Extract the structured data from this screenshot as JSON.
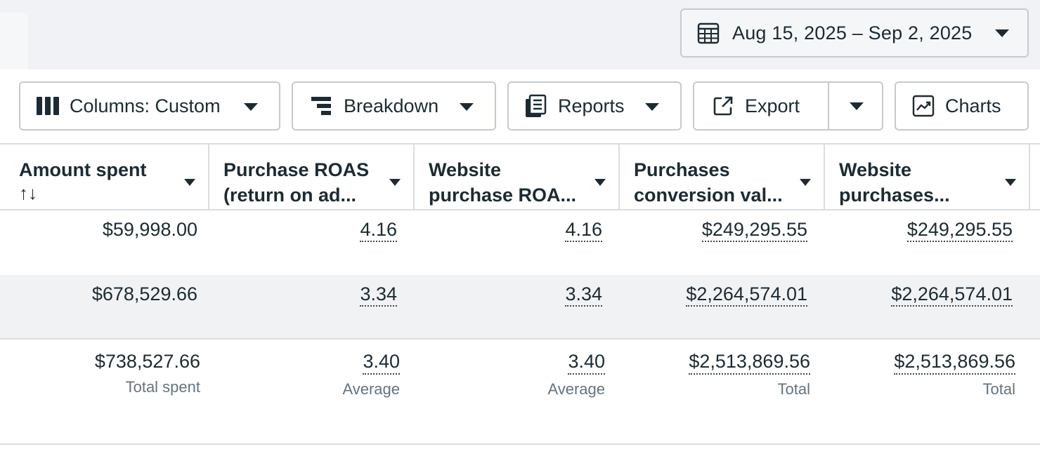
{
  "date_picker": {
    "label": "Aug 15, 2025 – Sep 2, 2025"
  },
  "toolbar": {
    "columns_label": "Columns: Custom",
    "breakdown_label": "Breakdown",
    "reports_label": "Reports",
    "export_label": "Export",
    "charts_label": "Charts"
  },
  "table": {
    "headers": [
      {
        "line1": "Amount spent",
        "line2": "↑↓"
      },
      {
        "line1": "Purchase ROAS",
        "line2": "(return on ad..."
      },
      {
        "line1": "Website",
        "line2": "purchase ROA..."
      },
      {
        "line1": "Purchases",
        "line2": "conversion val..."
      },
      {
        "line1": "Website",
        "line2": "purchases..."
      }
    ],
    "rows": [
      [
        "$59,998.00",
        "4.16",
        "4.16",
        "$249,295.55",
        "$249,295.55"
      ],
      [
        "$678,529.66",
        "3.34",
        "3.34",
        "$2,264,574.01",
        "$2,264,574.01"
      ]
    ],
    "totals": [
      {
        "value": "$738,527.66",
        "label": "Total spent"
      },
      {
        "value": "3.40",
        "label": "Average"
      },
      {
        "value": "3.40",
        "label": "Average"
      },
      {
        "value": "$2,513,869.56",
        "label": "Total"
      },
      {
        "value": "$2,513,869.56",
        "label": "Total"
      }
    ]
  }
}
